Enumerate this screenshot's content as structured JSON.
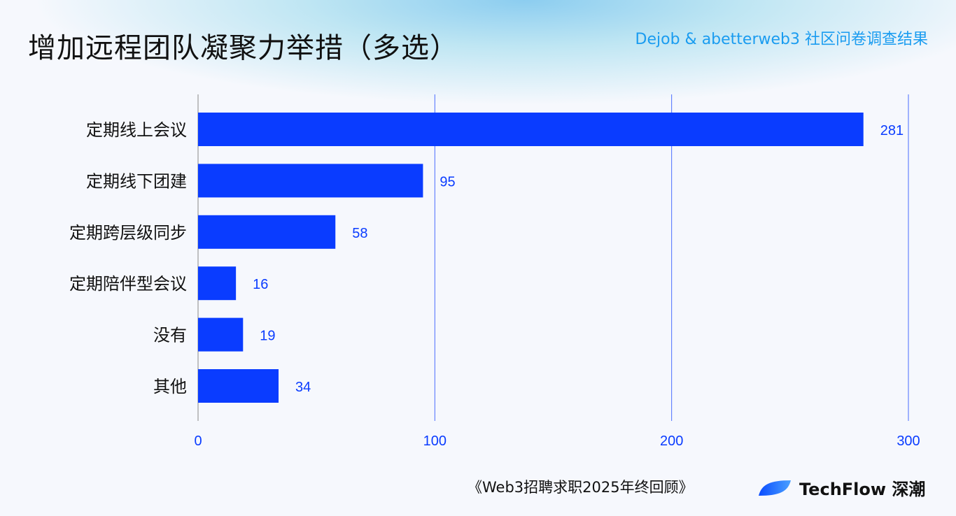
{
  "header": {
    "title": "增加远程团队凝聚力举措（多选）",
    "source": "Dejob & abetterweb3 社区问卷调查结果"
  },
  "footer": {
    "report": "《Web3招聘求职2025年终回顾》",
    "brand": "TechFlow 深潮"
  },
  "colors": {
    "bar": "#0a3cff",
    "label": "#0a3cff",
    "grid": "#4a6cff"
  },
  "chart_data": {
    "type": "bar",
    "orientation": "horizontal",
    "categories": [
      "定期线上会议",
      "定期线下团建",
      "定期跨层级同步",
      "定期陪伴型会议",
      "没有",
      "其他"
    ],
    "values": [
      281,
      95,
      58,
      16,
      19,
      34
    ],
    "xlim": [
      0,
      300
    ],
    "xticks": [
      0,
      100,
      200,
      300
    ],
    "grid": true,
    "title": "",
    "xlabel": "",
    "ylabel": ""
  }
}
